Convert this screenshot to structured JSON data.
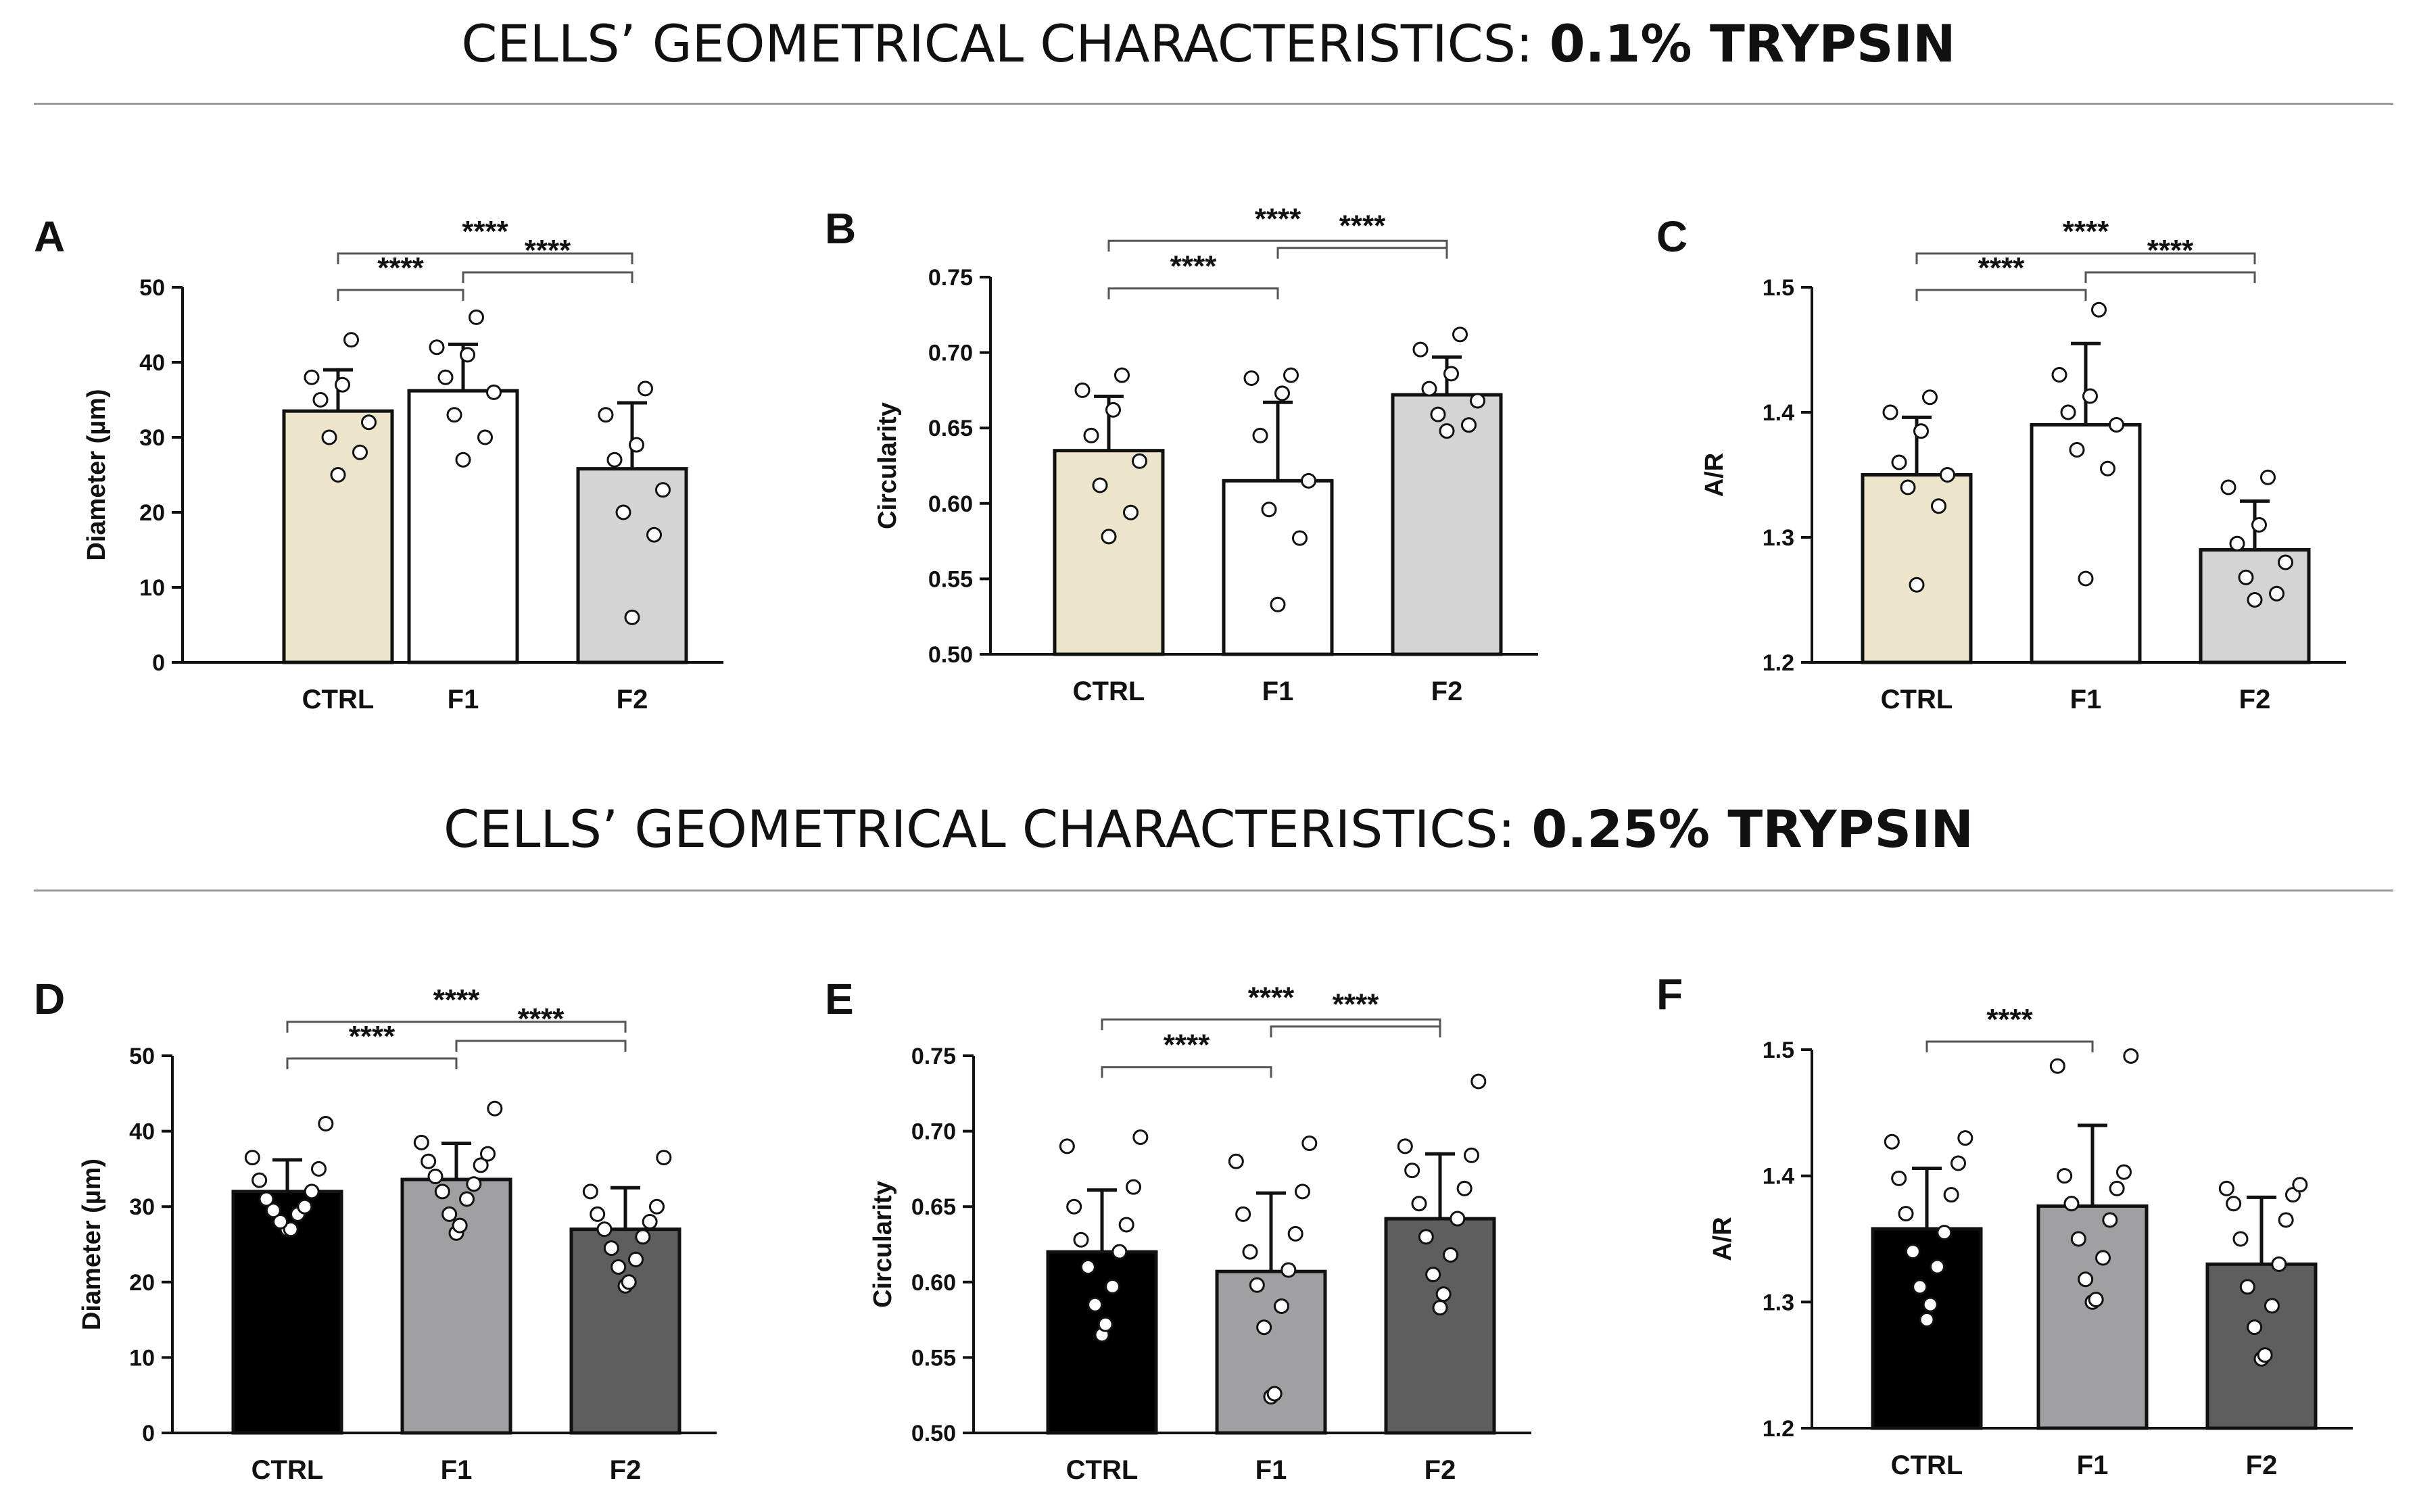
{
  "titles": {
    "top_prefix": "CELLS’ GEOMETRICAL CHARACTERISTICS: ",
    "top_bold": "0.1% TRYPSIN",
    "bottom_prefix": "CELLS’ GEOMETRICAL CHARACTERISTICS: ",
    "bottom_bold": "0.25% TRYPSIN"
  },
  "colors": {
    "ctrl_top": "#ece5cb",
    "f1_top": "#ffffff",
    "f2_top": "#d4d4d4",
    "ctrl_bottom": "#000000",
    "f1_bottom": "#a0a0a4",
    "f2_bottom": "#5e5e5e"
  },
  "chart_data": [
    {
      "panel": "A",
      "type": "bar",
      "ylabel": "Diameter (µm)",
      "ylim": [
        0,
        50
      ],
      "yticks": [
        0,
        10,
        20,
        30,
        40,
        50
      ],
      "ytick_labels": [
        "0",
        "10",
        "20",
        "30",
        "40",
        "50"
      ],
      "categories": [
        "CTRL",
        "F1",
        "F2"
      ],
      "values": [
        33.5,
        36.2,
        25.8
      ],
      "errors": [
        5.5,
        6.2,
        8.8
      ],
      "points": [
        [
          25,
          28,
          30,
          32,
          35,
          37,
          38,
          43
        ],
        [
          27,
          30,
          33,
          36,
          38,
          41,
          42,
          46
        ],
        [
          6,
          17,
          20,
          23,
          27,
          29,
          33,
          36.5
        ]
      ],
      "significance": [
        {
          "from": 0,
          "to": 1,
          "label": "****"
        },
        {
          "from": 1,
          "to": 2,
          "label": "****"
        },
        {
          "from": 0,
          "to": 2,
          "label": "****"
        }
      ],
      "fills": [
        "ctrl_top",
        "f1_top",
        "f2_top"
      ]
    },
    {
      "panel": "B",
      "type": "bar",
      "ylabel": "Circularity",
      "ylim": [
        0.5,
        0.75
      ],
      "yticks": [
        0.5,
        0.55,
        0.6,
        0.65,
        0.7,
        0.75
      ],
      "ytick_labels": [
        "0.50",
        "0.55",
        "0.60",
        "0.65",
        "0.70",
        "0.75"
      ],
      "categories": [
        "CTRL",
        "F1",
        "F2"
      ],
      "values": [
        0.635,
        0.615,
        0.672
      ],
      "errors": [
        0.036,
        0.052,
        0.025
      ],
      "points": [
        [
          0.578,
          0.594,
          0.612,
          0.628,
          0.645,
          0.662,
          0.675,
          0.685
        ],
        [
          0.533,
          0.577,
          0.596,
          0.615,
          0.645,
          0.673,
          0.683,
          0.685
        ],
        [
          0.648,
          0.652,
          0.659,
          0.668,
          0.676,
          0.686,
          0.702,
          0.712
        ]
      ],
      "significance": [
        {
          "from": 0,
          "to": 1,
          "label": "****"
        },
        {
          "from": 1,
          "to": 2,
          "label": "****"
        },
        {
          "from": 0,
          "to": 2,
          "label": "****"
        }
      ],
      "fills": [
        "ctrl_top",
        "f1_top",
        "f2_top"
      ]
    },
    {
      "panel": "C",
      "type": "bar",
      "ylabel": "A/R",
      "ylim": [
        1.2,
        1.5
      ],
      "yticks": [
        1.2,
        1.3,
        1.4,
        1.5
      ],
      "ytick_labels": [
        "1.2",
        "1.3",
        "1.4",
        "1.5"
      ],
      "categories": [
        "CTRL",
        "F1",
        "F2"
      ],
      "values": [
        1.35,
        1.39,
        1.29
      ],
      "errors": [
        0.046,
        0.065,
        0.039
      ],
      "points": [
        [
          1.262,
          1.325,
          1.34,
          1.35,
          1.36,
          1.385,
          1.4,
          1.412
        ],
        [
          1.267,
          1.355,
          1.37,
          1.39,
          1.4,
          1.413,
          1.43,
          1.482
        ],
        [
          1.25,
          1.255,
          1.268,
          1.28,
          1.295,
          1.31,
          1.34,
          1.348
        ]
      ],
      "significance": [
        {
          "from": 0,
          "to": 1,
          "label": "****"
        },
        {
          "from": 1,
          "to": 2,
          "label": "****"
        },
        {
          "from": 0,
          "to": 2,
          "label": "****"
        }
      ],
      "fills": [
        "ctrl_top",
        "f1_top",
        "f2_top"
      ]
    },
    {
      "panel": "D",
      "type": "bar",
      "ylabel": "Diameter (µm)",
      "ylim": [
        0,
        50
      ],
      "yticks": [
        0,
        10,
        20,
        30,
        40,
        50
      ],
      "ytick_labels": [
        "0",
        "10",
        "20",
        "30",
        "40",
        "50"
      ],
      "categories": [
        "CTRL",
        "F1",
        "F2"
      ],
      "values": [
        32,
        33.6,
        27
      ],
      "errors": [
        4.2,
        4.8,
        5.5
      ],
      "points": [
        [
          27,
          27,
          28,
          29,
          29.5,
          30,
          31,
          32,
          33.5,
          35,
          36.5,
          41
        ],
        [
          26.5,
          27.5,
          29,
          31,
          32,
          33,
          34,
          35.5,
          36,
          37,
          38.5,
          43
        ],
        [
          19.5,
          20,
          22,
          23,
          24.5,
          26,
          27,
          28,
          29,
          30,
          32,
          36.5
        ]
      ],
      "significance": [
        {
          "from": 0,
          "to": 1,
          "label": "****"
        },
        {
          "from": 1,
          "to": 2,
          "label": "****"
        },
        {
          "from": 0,
          "to": 2,
          "label": "****"
        }
      ],
      "fills": [
        "ctrl_bottom",
        "f1_bottom",
        "f2_bottom"
      ]
    },
    {
      "panel": "E",
      "type": "bar",
      "ylabel": "Circularity",
      "ylim": [
        0.5,
        0.75
      ],
      "yticks": [
        0.5,
        0.55,
        0.6,
        0.65,
        0.7,
        0.75
      ],
      "ytick_labels": [
        "0.50",
        "0.55",
        "0.60",
        "0.65",
        "0.70",
        "0.75"
      ],
      "categories": [
        "CTRL",
        "F1",
        "F2"
      ],
      "values": [
        0.62,
        0.607,
        0.642
      ],
      "errors": [
        0.041,
        0.052,
        0.043
      ],
      "points": [
        [
          0.565,
          0.572,
          0.585,
          0.597,
          0.61,
          0.62,
          0.628,
          0.638,
          0.65,
          0.663,
          0.69,
          0.696
        ],
        [
          0.524,
          0.526,
          0.57,
          0.584,
          0.598,
          0.608,
          0.62,
          0.632,
          0.645,
          0.66,
          0.68,
          0.692
        ],
        [
          0.583,
          0.592,
          0.605,
          0.618,
          0.63,
          0.642,
          0.652,
          0.662,
          0.674,
          0.684,
          0.69,
          0.733
        ]
      ],
      "significance": [
        {
          "from": 0,
          "to": 1,
          "label": "****"
        },
        {
          "from": 1,
          "to": 2,
          "label": "****"
        },
        {
          "from": 0,
          "to": 2,
          "label": "****"
        }
      ],
      "fills": [
        "ctrl_bottom",
        "f1_bottom",
        "f2_bottom"
      ]
    },
    {
      "panel": "F",
      "type": "bar",
      "ylabel": "A/R",
      "ylim": [
        1.2,
        1.5
      ],
      "yticks": [
        1.2,
        1.3,
        1.4,
        1.5
      ],
      "ytick_labels": [
        "1.2",
        "1.3",
        "1.4",
        "1.5"
      ],
      "categories": [
        "CTRL",
        "F1",
        "F2"
      ],
      "values": [
        1.358,
        1.376,
        1.33
      ],
      "errors": [
        0.048,
        0.064,
        0.053
      ],
      "points": [
        [
          1.286,
          1.298,
          1.312,
          1.328,
          1.34,
          1.355,
          1.37,
          1.385,
          1.398,
          1.41,
          1.427,
          1.43
        ],
        [
          1.3,
          1.302,
          1.318,
          1.335,
          1.35,
          1.365,
          1.378,
          1.39,
          1.4,
          1.403,
          1.487,
          1.495
        ],
        [
          1.255,
          1.258,
          1.28,
          1.297,
          1.312,
          1.33,
          1.35,
          1.365,
          1.378,
          1.385,
          1.39,
          1.393
        ]
      ],
      "significance": [
        {
          "from": 0,
          "to": 1,
          "label": "****"
        }
      ],
      "fills": [
        "ctrl_bottom",
        "f1_bottom",
        "f2_bottom"
      ]
    }
  ]
}
